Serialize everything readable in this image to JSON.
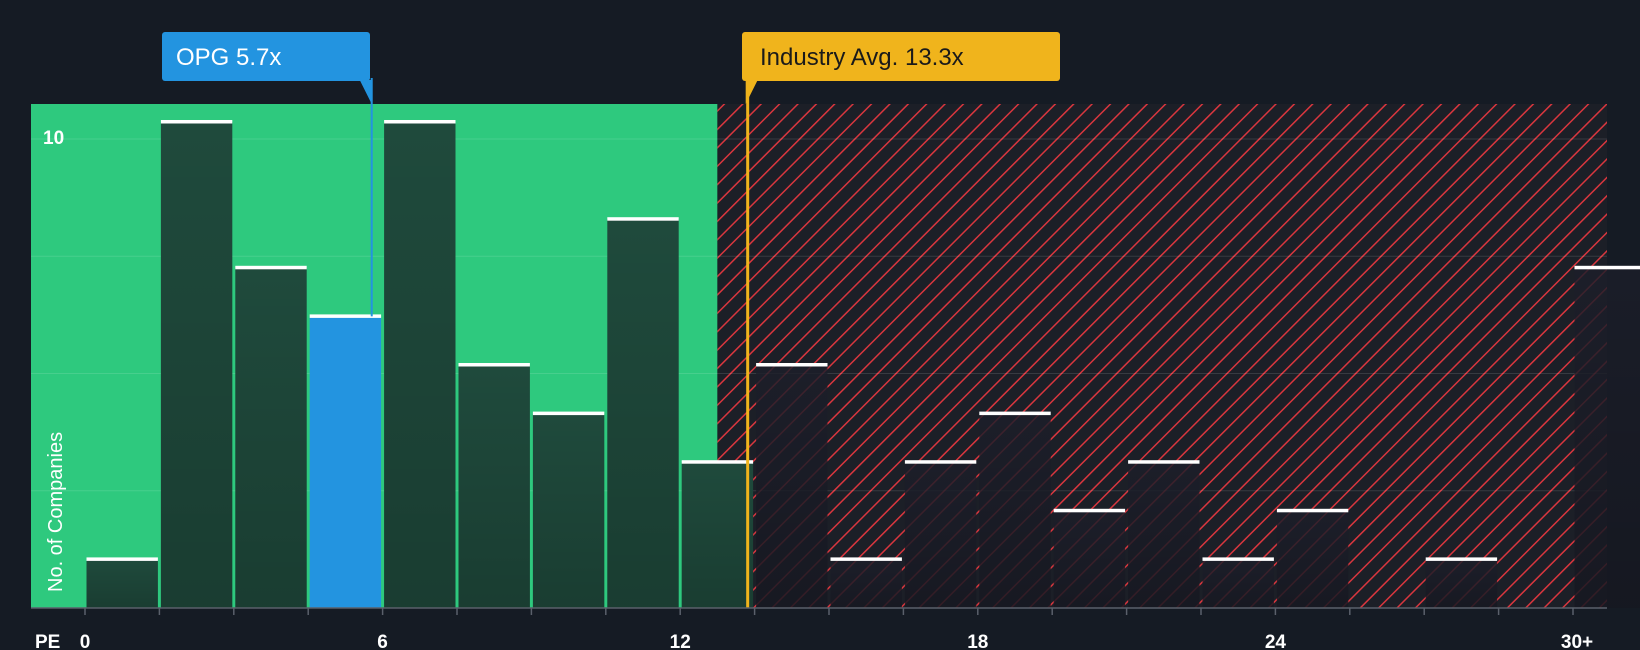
{
  "chart_data": {
    "type": "bar",
    "xlabel": "PE",
    "ylabel": "No. of Companies",
    "x_ticks": [
      "0",
      "6",
      "12",
      "18",
      "24",
      "30+"
    ],
    "y_ticks": [
      "10"
    ],
    "ylim": [
      0,
      10.5
    ],
    "bins": [
      {
        "start": 0,
        "end": 1.5,
        "count": 1
      },
      {
        "start": 1.5,
        "end": 3,
        "count": 10
      },
      {
        "start": 3,
        "end": 4.5,
        "count": 7
      },
      {
        "start": 4.5,
        "end": 6,
        "count": 6
      },
      {
        "start": 6,
        "end": 7.5,
        "count": 10
      },
      {
        "start": 7.5,
        "end": 9,
        "count": 5
      },
      {
        "start": 9,
        "end": 10.5,
        "count": 4
      },
      {
        "start": 10.5,
        "end": 12,
        "count": 8
      },
      {
        "start": 12,
        "end": 13.5,
        "count": 3
      },
      {
        "start": 13.5,
        "end": 15,
        "count": 5
      },
      {
        "start": 15,
        "end": 16.5,
        "count": 1
      },
      {
        "start": 16.5,
        "end": 18,
        "count": 3
      },
      {
        "start": 18,
        "end": 19.5,
        "count": 4
      },
      {
        "start": 19.5,
        "end": 21,
        "count": 2
      },
      {
        "start": 21,
        "end": 22.5,
        "count": 3
      },
      {
        "start": 22.5,
        "end": 24,
        "count": 1
      },
      {
        "start": 24,
        "end": 25.5,
        "count": 2
      },
      {
        "start": 25.5,
        "end": 27,
        "count": 0
      },
      {
        "start": 27,
        "end": 28.5,
        "count": 1
      },
      {
        "start": 28.5,
        "end": 30,
        "count": 0
      },
      {
        "start": 30,
        "end": 31.5,
        "count": 7
      }
    ],
    "highlight_bin_index": 3,
    "company": {
      "label": "OPG 5.7x",
      "value": 5.7
    },
    "industry": {
      "label": "Industry Avg. 13.3x",
      "value": 13.3
    },
    "fair_zone_end": 12.75,
    "colors": {
      "background": "#151b24",
      "fair_zone": "#2ec97e",
      "overvalued_hatch": "#d9363e",
      "bar": "#1f4a3c",
      "highlight_bar": "#2394e0",
      "company_callout": "#2394e0",
      "industry_callout": "#f0b41c"
    }
  }
}
